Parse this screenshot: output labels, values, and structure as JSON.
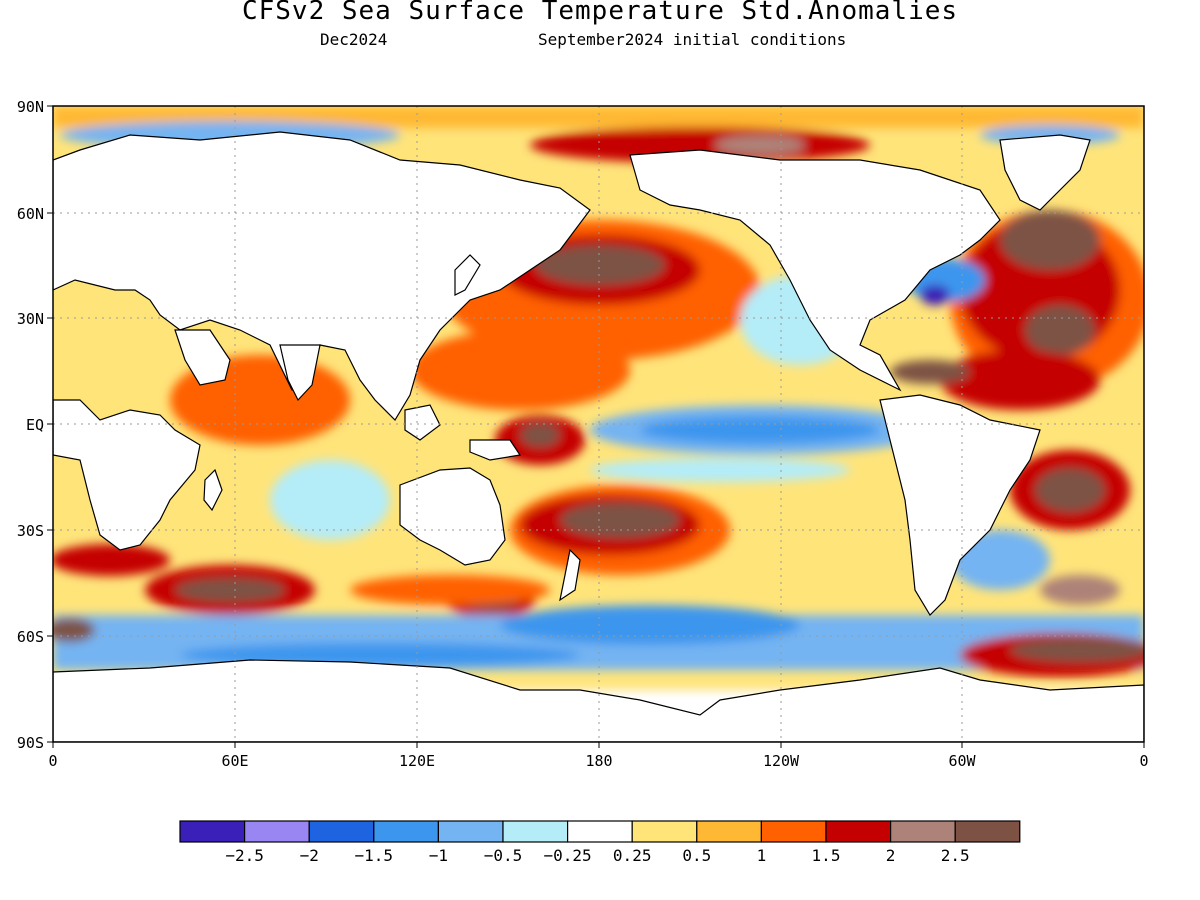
{
  "title": "CFSv2 Sea Surface Temperature Std.Anomalies",
  "forecast_month": "Dec2024",
  "initial_conditions": "September2024 initial conditions",
  "lat_labels": [
    "90N",
    "60N",
    "30N",
    "EQ",
    "30S",
    "60S",
    "90S"
  ],
  "lon_labels": [
    "0",
    "60E",
    "120E",
    "180",
    "120W",
    "60W",
    "0"
  ],
  "legend": {
    "colors": [
      "#3a1fb8",
      "#9a86f2",
      "#1e63e0",
      "#3c96ee",
      "#74b4f2",
      "#b4ecf8",
      "#ffffff",
      "#ffe47a",
      "#ffb833",
      "#ff6000",
      "#c50000",
      "#ad8278",
      "#7d5245"
    ],
    "labels": [
      "−2.5",
      "−2",
      "−1.5",
      "−1",
      "−0.5",
      "−0.25",
      "0.25",
      "0.5",
      "1",
      "1.5",
      "2",
      "2.5"
    ]
  }
}
